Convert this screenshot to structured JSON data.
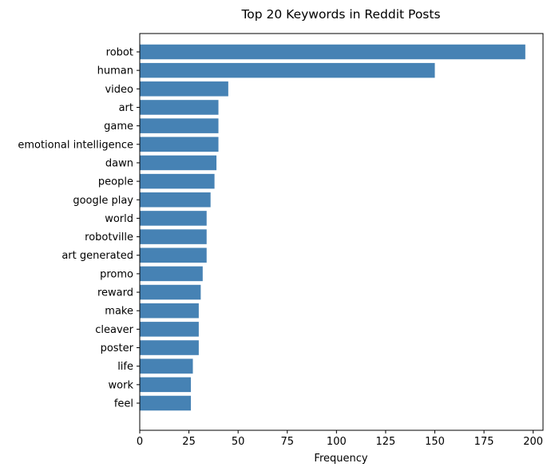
{
  "chart_data": {
    "type": "bar",
    "orientation": "horizontal",
    "title": "Top 20 Keywords in Reddit Posts",
    "xlabel": "Frequency",
    "ylabel": "",
    "xlim": [
      0,
      205
    ],
    "xticks": [
      0,
      25,
      50,
      75,
      100,
      125,
      150,
      175,
      200
    ],
    "grid": false,
    "bar_color": "#4682b4",
    "categories": [
      "robot",
      "human",
      "video",
      "art",
      "game",
      "emotional intelligence",
      "dawn",
      "people",
      "google play",
      "world",
      "robotville",
      "art generated",
      "promo",
      "reward",
      "make",
      "cleaver",
      "poster",
      "life",
      "work",
      "feel"
    ],
    "values": [
      196,
      150,
      45,
      40,
      40,
      40,
      39,
      38,
      36,
      34,
      34,
      34,
      32,
      31,
      30,
      30,
      30,
      27,
      26,
      26
    ]
  }
}
